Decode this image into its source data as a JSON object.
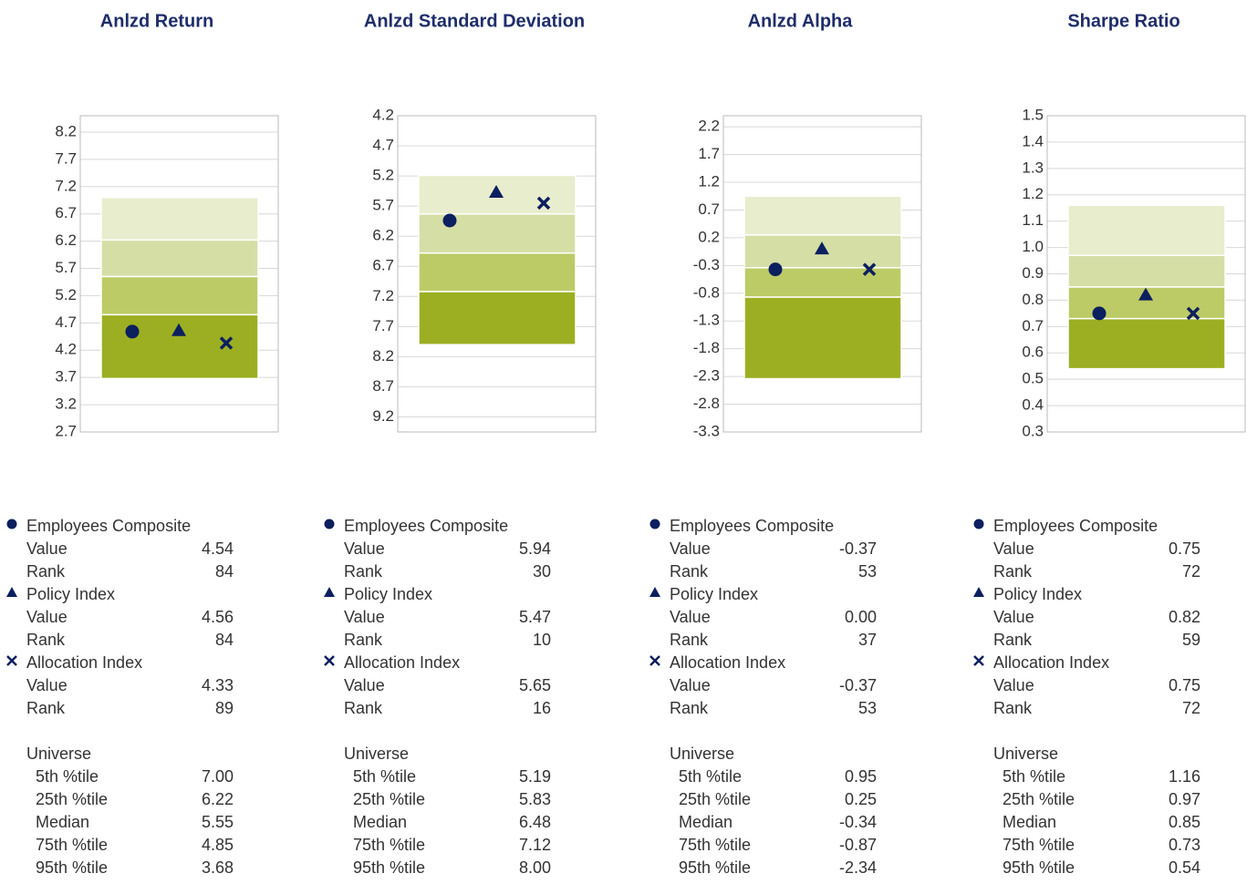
{
  "labels": {
    "value": "Value",
    "rank": "Rank",
    "universe": "Universe"
  },
  "percentile_names": [
    "5th %tile",
    "25th %tile",
    "Median",
    "75th %tile",
    "95th %tile"
  ],
  "chart_data": [
    {
      "type": "floating_bar",
      "title": "Anlzd Return",
      "ylim": [
        2.7,
        8.5
      ],
      "inverted": false,
      "grid": true,
      "yticks": [
        2.7,
        3.2,
        3.7,
        4.2,
        4.7,
        5.2,
        5.7,
        6.2,
        6.7,
        7.2,
        7.7,
        8.2
      ],
      "band_colors": [
        "#e8edcd",
        "#d5dea5",
        "#bccb66",
        "#9caf22"
      ],
      "percentiles": [
        7.0,
        6.22,
        5.55,
        4.85,
        3.68
      ],
      "percentile_labels": [
        "7.00",
        "6.22",
        "5.55",
        "4.85",
        "3.68"
      ],
      "series": [
        {
          "name": "Employees Composite",
          "marker": "circle",
          "color": "#0c1f5f",
          "values": [
            4.54
          ],
          "value_labels": [
            "4.54"
          ],
          "rank": 84
        },
        {
          "name": "Policy Index",
          "marker": "triangle",
          "color": "#0c1f5f",
          "values": [
            4.56
          ],
          "value_labels": [
            "4.56"
          ],
          "rank": 84
        },
        {
          "name": "Allocation Index",
          "marker": "cross",
          "color": "#0c1f5f",
          "values": [
            4.33
          ],
          "value_labels": [
            "4.33"
          ],
          "rank": 89
        }
      ]
    },
    {
      "type": "floating_bar",
      "title": "Anlzd Standard Deviation",
      "ylim": [
        4.2,
        9.45
      ],
      "inverted": true,
      "grid": true,
      "yticks": [
        4.2,
        4.7,
        5.2,
        5.7,
        6.2,
        6.7,
        7.2,
        7.7,
        8.2,
        8.7,
        9.2
      ],
      "band_colors": [
        "#e8edcd",
        "#d5dea5",
        "#bccb66",
        "#9caf22"
      ],
      "percentiles": [
        5.19,
        5.83,
        6.48,
        7.12,
        8.0
      ],
      "percentile_labels": [
        "5.19",
        "5.83",
        "6.48",
        "7.12",
        "8.00"
      ],
      "series": [
        {
          "name": "Employees Composite",
          "marker": "circle",
          "color": "#0c1f5f",
          "values": [
            5.94
          ],
          "value_labels": [
            "5.94"
          ],
          "rank": 30
        },
        {
          "name": "Policy Index",
          "marker": "triangle",
          "color": "#0c1f5f",
          "values": [
            5.47
          ],
          "value_labels": [
            "5.47"
          ],
          "rank": 10
        },
        {
          "name": "Allocation Index",
          "marker": "cross",
          "color": "#0c1f5f",
          "values": [
            5.65
          ],
          "value_labels": [
            "5.65"
          ],
          "rank": 16
        }
      ]
    },
    {
      "type": "floating_bar",
      "title": "Anlzd Alpha",
      "ylim": [
        -3.3,
        2.4
      ],
      "inverted": false,
      "grid": true,
      "yticks": [
        -3.3,
        -2.8,
        -2.3,
        -1.8,
        -1.3,
        -0.8,
        -0.3,
        0.2,
        0.7,
        1.2,
        1.7,
        2.2
      ],
      "band_colors": [
        "#e8edcd",
        "#d5dea5",
        "#bccb66",
        "#9caf22"
      ],
      "percentiles": [
        0.95,
        0.25,
        -0.34,
        -0.87,
        -2.34
      ],
      "percentile_labels": [
        "0.95",
        "0.25",
        "-0.34",
        "-0.87",
        "-2.34"
      ],
      "series": [
        {
          "name": "Employees Composite",
          "marker": "circle",
          "color": "#0c1f5f",
          "values": [
            -0.37
          ],
          "value_labels": [
            "-0.37"
          ],
          "rank": 53
        },
        {
          "name": "Policy Index",
          "marker": "triangle",
          "color": "#0c1f5f",
          "values": [
            0.0
          ],
          "value_labels": [
            "0.00"
          ],
          "rank": 37
        },
        {
          "name": "Allocation Index",
          "marker": "cross",
          "color": "#0c1f5f",
          "values": [
            -0.37
          ],
          "value_labels": [
            "-0.37"
          ],
          "rank": 53
        }
      ]
    },
    {
      "type": "floating_bar",
      "title": "Sharpe Ratio",
      "ylim": [
        0.3,
        1.5
      ],
      "inverted": false,
      "grid": true,
      "yticks": [
        0.3,
        0.4,
        0.5,
        0.6,
        0.7,
        0.8,
        0.9,
        {
          "value": 1,
          "label": "1.0"
        },
        1.1,
        1.2,
        1.3,
        1.4,
        1.5
      ],
      "band_colors": [
        "#e8edcd",
        "#d5dea5",
        "#bccb66",
        "#9caf22"
      ],
      "percentiles": [
        1.16,
        0.97,
        0.85,
        0.73,
        0.54
      ],
      "percentile_labels": [
        "1.16",
        "0.97",
        "0.85",
        "0.73",
        "0.54"
      ],
      "series": [
        {
          "name": "Employees Composite",
          "marker": "circle",
          "color": "#0c1f5f",
          "values": [
            0.75
          ],
          "value_labels": [
            "0.75"
          ],
          "rank": 72
        },
        {
          "name": "Policy Index",
          "marker": "triangle",
          "color": "#0c1f5f",
          "values": [
            0.82
          ],
          "value_labels": [
            "0.82"
          ],
          "rank": 59
        },
        {
          "name": "Allocation Index",
          "marker": "cross",
          "color": "#0c1f5f",
          "values": [
            0.75
          ],
          "value_labels": [
            "0.75"
          ],
          "rank": 72
        }
      ]
    }
  ]
}
